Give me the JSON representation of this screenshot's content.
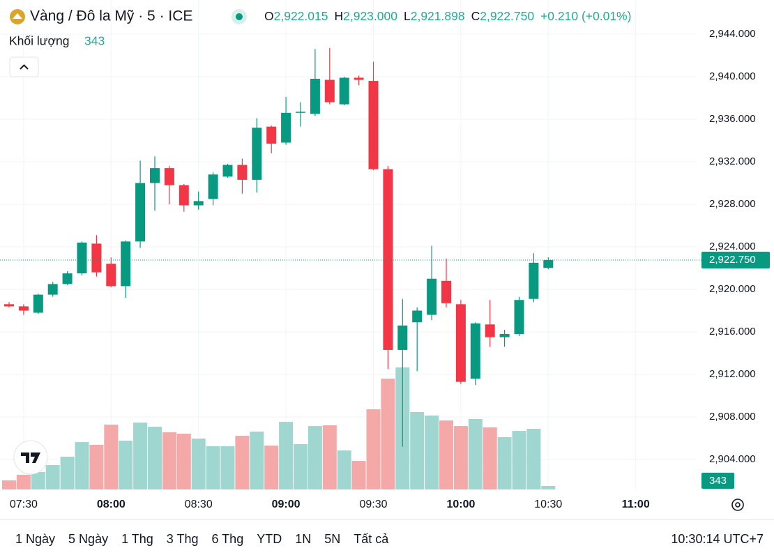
{
  "chart_data": {
    "type": "candlestick",
    "title": "Vàng / Đô la Mỹ · 5 · ICE",
    "legend_items": [
      {
        "label": "O",
        "value": "2,922.015"
      },
      {
        "label": "H",
        "value": "2,923.000"
      },
      {
        "label": "L",
        "value": "2,921.898"
      },
      {
        "label": "C",
        "value": "2,922.750"
      }
    ],
    "change": "+0.210 (+0.01%)",
    "volume_title": "Khối lượng",
    "categories": [
      null,
      "07:30",
      null,
      null,
      null,
      null,
      null,
      "08:00",
      null,
      null,
      null,
      null,
      null,
      "08:30",
      null,
      null,
      null,
      null,
      null,
      "09:00",
      null,
      null,
      null,
      null,
      null,
      "09:30",
      null,
      null,
      null,
      null,
      null,
      "10:00",
      null,
      null,
      null,
      null,
      null,
      "10:30"
    ],
    "future_ticks": [
      "11:00"
    ],
    "open": [
      2918.6,
      2918.4,
      2917.8,
      2919.5,
      2920.5,
      2921.5,
      2924.3,
      2922.4,
      2920.3,
      2924.5,
      2930.0,
      2931.4,
      2929.8,
      2927.9,
      2928.5,
      2930.6,
      2931.7,
      2930.3,
      2935.3,
      2933.8,
      2936.6,
      2936.5,
      2939.7,
      2937.4,
      2939.9,
      2939.6,
      2931.3,
      2914.3,
      2916.9,
      2917.6,
      2920.8,
      2918.6,
      2911.6,
      2916.7,
      2915.5,
      2915.8,
      2919.1,
      2922.015
    ],
    "high": [
      2918.8,
      2918.6,
      2919.6,
      2920.7,
      2921.7,
      2924.5,
      2925.1,
      2923.0,
      2924.6,
      2932.1,
      2932.5,
      2931.6,
      2929.9,
      2929.2,
      2931.0,
      2931.8,
      2932.3,
      2936.1,
      2935.4,
      2938.1,
      2937.6,
      2942.6,
      2942.7,
      2940.0,
      2940.1,
      2941.4,
      2931.6,
      2919.1,
      2918.3,
      2924.1,
      2922.9,
      2919.0,
      2916.9,
      2919.0,
      2916.2,
      2919.3,
      2923.4,
      2923.0
    ],
    "low": [
      2918.3,
      2917.6,
      2917.7,
      2919.3,
      2920.4,
      2921.3,
      2921.2,
      2920.2,
      2919.2,
      2923.9,
      2927.4,
      2928.0,
      2927.3,
      2927.5,
      2927.9,
      2930.5,
      2929.0,
      2929.1,
      2932.8,
      2933.6,
      2935.3,
      2936.3,
      2937.4,
      2937.3,
      2939.2,
      2931.2,
      2912.5,
      2905.2,
      2912.3,
      2917.1,
      2918.3,
      2911.1,
      2911.0,
      2914.6,
      2914.6,
      2915.6,
      2918.8,
      2921.898
    ],
    "close": [
      2918.4,
      2918.0,
      2919.5,
      2920.5,
      2921.5,
      2924.4,
      2921.6,
      2920.3,
      2924.5,
      2930.0,
      2931.4,
      2929.8,
      2927.9,
      2928.3,
      2930.8,
      2931.7,
      2930.3,
      2935.2,
      2933.7,
      2936.6,
      2936.7,
      2939.8,
      2937.6,
      2939.9,
      2939.7,
      2931.3,
      2914.3,
      2916.6,
      2918.0,
      2921.0,
      2918.7,
      2911.3,
      2916.8,
      2915.5,
      2915.8,
      2919.0,
      2922.5,
      2922.75
    ],
    "volume": [
      890,
      1440,
      1710,
      2390,
      3210,
      4640,
      4370,
      6350,
      4780,
      6550,
      6140,
      5600,
      5460,
      4980,
      4230,
      4230,
      5260,
      5670,
      4300,
      6620,
      4440,
      6210,
      6280,
      3820,
      2800,
      7850,
      10850,
      11950,
      7580,
      7240,
      6760,
      6210,
      6900,
      6080,
      5120,
      5730,
      5940,
      343
    ],
    "up_color": "#089981",
    "down_color": "#f23645",
    "volume_up_color": "#9fd6d0",
    "volume_down_color": "#f4a8a8",
    "ylim": [
      2901.18,
      2947.21
    ],
    "yticks": [
      {
        "value": 2904,
        "label": "2,904.000"
      },
      {
        "value": 2908,
        "label": "2,908.000"
      },
      {
        "value": 2912,
        "label": "2,912.000"
      },
      {
        "value": 2916,
        "label": "2,916.000"
      },
      {
        "value": 2920,
        "label": "2,920.000"
      },
      {
        "value": 2924,
        "label": "2,924.000"
      },
      {
        "value": 2928,
        "label": "2,928.000"
      },
      {
        "value": 2932,
        "label": "2,932.000"
      },
      {
        "value": 2936,
        "label": "2,936.000"
      },
      {
        "value": 2940,
        "label": "2,940.000"
      },
      {
        "value": 2944,
        "label": "2,944.000"
      }
    ],
    "last_price": {
      "value": 2922.75,
      "label": "2,922.750"
    },
    "grid": true,
    "ranges": [
      "1 Ngày",
      "5 Ngày",
      "1 Thg",
      "3 Thg",
      "6 Thg",
      "YTD",
      "1N",
      "5N",
      "Tất cả"
    ],
    "clock": "10:30:14 UTC+7"
  }
}
